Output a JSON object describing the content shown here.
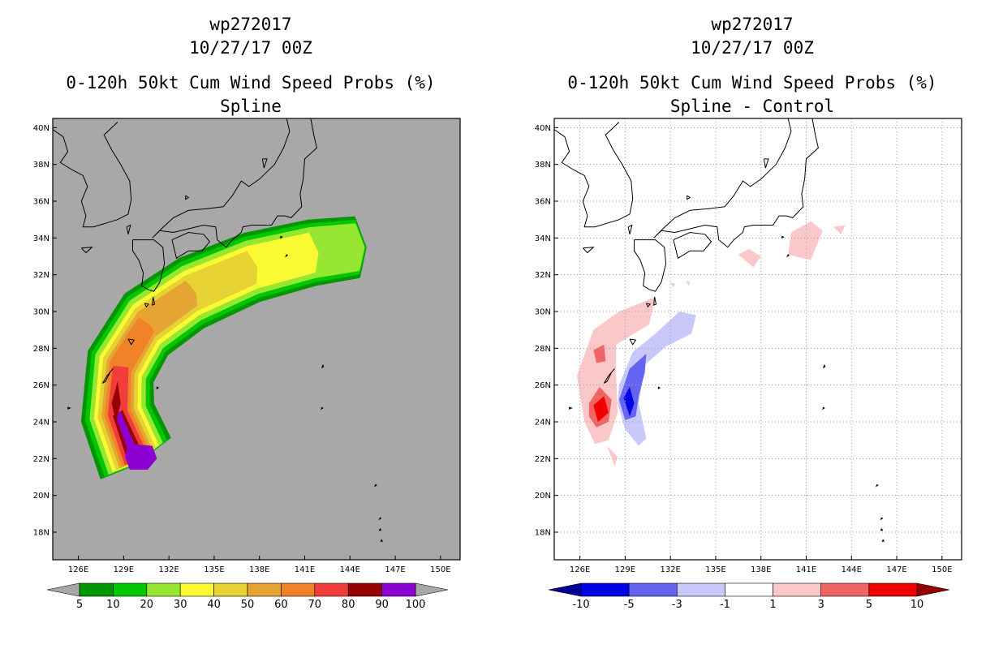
{
  "chart_data": [
    {
      "type": "heatmap",
      "title_lines": [
        "wp272017",
        "10/27/17 00Z",
        "0-120h 50kt Cum Wind Speed Probs (%)",
        "Spline"
      ],
      "xlabel": "",
      "ylabel": "",
      "xlim": [
        124.3,
        151.3
      ],
      "ylim": [
        16.5,
        40.5
      ],
      "x_ticks": [
        126,
        129,
        132,
        135,
        138,
        141,
        144,
        147,
        150
      ],
      "x_tick_labels": [
        "126E",
        "129E",
        "132E",
        "135E",
        "138E",
        "141E",
        "144E",
        "147E",
        "150E"
      ],
      "y_ticks": [
        18,
        20,
        22,
        24,
        26,
        28,
        30,
        32,
        34,
        36,
        38,
        40
      ],
      "y_tick_labels": [
        "18N",
        "20N",
        "22N",
        "24N",
        "26N",
        "28N",
        "30N",
        "32N",
        "34N",
        "36N",
        "38N",
        "40N"
      ],
      "background_color": "#a8a8a8",
      "grid": false,
      "colorbar": {
        "labels": [
          "5",
          "10",
          "20",
          "30",
          "40",
          "50",
          "60",
          "70",
          "80",
          "90",
          "100"
        ],
        "colors": [
          "#009600",
          "#00c800",
          "#96e632",
          "#fafa32",
          "#e6d232",
          "#e6a532",
          "#f08228",
          "#f03c3c",
          "#960000",
          "#8c00d2"
        ],
        "underflow_color": "#a8a8a8",
        "overflow_color": "#a8a8a8"
      },
      "probability_track": {
        "description": "nested probability bands along forecast track",
        "axis": [
          [
            129.8,
            22.0
          ],
          [
            128.6,
            24.5
          ],
          [
            128.8,
            27.0
          ],
          [
            130.5,
            29.3
          ],
          [
            133.5,
            31.0
          ],
          [
            137.5,
            32.4
          ],
          [
            141.5,
            33.2
          ],
          [
            144.5,
            33.5
          ]
        ],
        "levels": [
          {
            "min": 5,
            "color": "#009600"
          },
          {
            "min": 10,
            "color": "#00c800"
          },
          {
            "min": 20,
            "color": "#96e632"
          },
          {
            "min": 30,
            "color": "#fafa32"
          },
          {
            "min": 40,
            "color": "#e6d232"
          },
          {
            "min": 50,
            "color": "#e6a532"
          },
          {
            "min": 60,
            "color": "#f08228"
          },
          {
            "min": 70,
            "color": "#f03c3c"
          },
          {
            "min": 80,
            "color": "#960000"
          },
          {
            "min": 90,
            "color": "#8c00d2"
          }
        ]
      }
    },
    {
      "type": "heatmap",
      "title_lines": [
        "wp272017",
        "10/27/17 00Z",
        "0-120h 50kt Cum Wind Speed Probs (%)",
        "Spline - Control"
      ],
      "xlabel": "",
      "ylabel": "",
      "xlim": [
        124.3,
        151.3
      ],
      "ylim": [
        16.5,
        40.5
      ],
      "x_ticks": [
        126,
        129,
        132,
        135,
        138,
        141,
        144,
        147,
        150
      ],
      "x_tick_labels": [
        "126E",
        "129E",
        "132E",
        "135E",
        "138E",
        "141E",
        "144E",
        "147E",
        "150E"
      ],
      "y_ticks": [
        18,
        20,
        22,
        24,
        26,
        28,
        30,
        32,
        34,
        36,
        38,
        40
      ],
      "y_tick_labels": [
        "18N",
        "20N",
        "22N",
        "24N",
        "26N",
        "28N",
        "30N",
        "32N",
        "34N",
        "36N",
        "38N",
        "40N"
      ],
      "background_color": "#ffffff",
      "grid": true,
      "colorbar": {
        "labels": [
          "-10",
          "-5",
          "-3",
          "-1",
          "1",
          "3",
          "5",
          "10"
        ],
        "colors": [
          "#0000e6",
          "#6464f0",
          "#c8c8fa",
          "#ffffff",
          "#fac8c8",
          "#f06464",
          "#f00000"
        ],
        "underflow_color": "#000096",
        "overflow_color": "#960000"
      },
      "difference_areas": {
        "positive": [
          {
            "level": "1 to 3",
            "color": "#fac8c8",
            "region": "west of track 26N-30N"
          },
          {
            "level": "3 to 5",
            "color": "#f06464",
            "region": "near 127.5E 24.5N"
          },
          {
            "level": "5 to 10",
            "color": "#f00000",
            "region": "near 127.5E 24.5N"
          }
        ],
        "negative": [
          {
            "level": "-3 to -1",
            "color": "#c8c8fa",
            "region": "east of track 23N-30N"
          },
          {
            "level": "-5 to -3",
            "color": "#6464f0",
            "region": "near 129E 25N"
          },
          {
            "level": "-10 to -5",
            "color": "#0000e6",
            "region": "near 129E 25N"
          }
        ]
      }
    }
  ]
}
